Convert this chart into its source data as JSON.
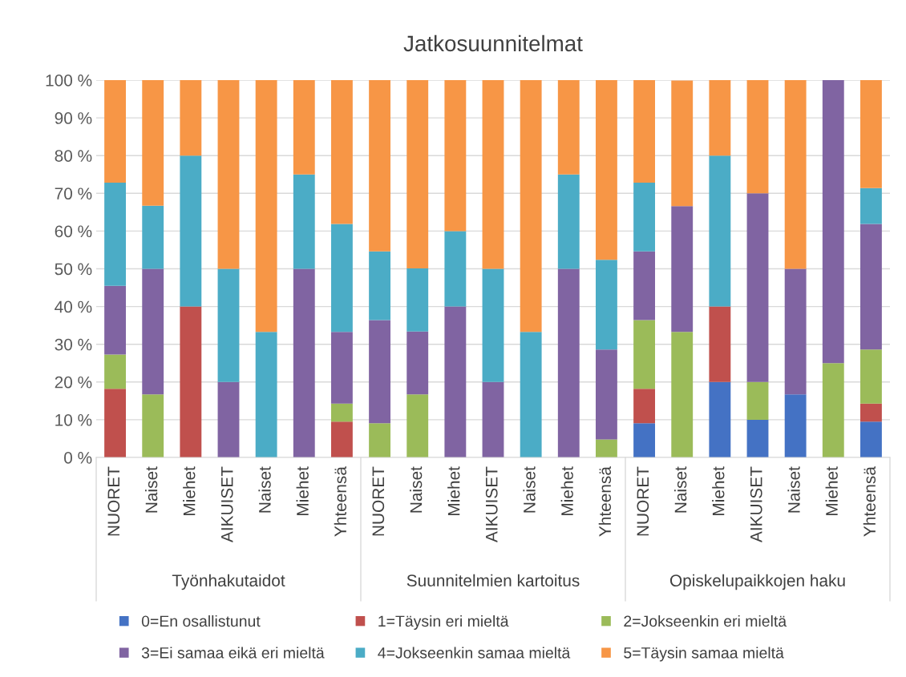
{
  "chart_data": {
    "type": "bar",
    "title": "Jatkosuunnitelmat",
    "stacked": true,
    "categories": [
      "NUORET",
      "Naiset",
      "Miehet",
      "AIKUISET",
      "Naiset",
      "Miehet",
      "Yhteensä",
      "NUORET",
      "Naiset",
      "Miehet",
      "AIKUISET",
      "Naiset",
      "Miehet",
      "Yhteensä",
      "NUORET",
      "Naiset",
      "Miehet",
      "AIKUISET",
      "Naiset",
      "Miehet",
      "Yhteensä"
    ],
    "annotations": [
      "Työnhakutaidot",
      "Suunnitelmien kartoitus",
      "Opiskelupaikkojen haku"
    ],
    "series": [
      {
        "name": "0=En osallistunut",
        "color": "#4472c4",
        "values": [
          0,
          0,
          0,
          0,
          0,
          0,
          0,
          0,
          0,
          0,
          0,
          0,
          0,
          0,
          9.1,
          0,
          20,
          10,
          16.7,
          0,
          9.5
        ]
      },
      {
        "name": "1=Täysin eri mieltä",
        "color": "#c0504d",
        "values": [
          18.2,
          0,
          40,
          0,
          0,
          0,
          9.5,
          0,
          0,
          0,
          0,
          0,
          0,
          0,
          9.1,
          0,
          20,
          0,
          0,
          0,
          4.8
        ]
      },
      {
        "name": "2=Jokseenkin eri mieltä",
        "color": "#9bbb59",
        "values": [
          9.1,
          16.7,
          0,
          0,
          0,
          0,
          4.8,
          9.1,
          16.7,
          0,
          0,
          0,
          0,
          4.8,
          18.2,
          33.3,
          0,
          10,
          0,
          25,
          14.3
        ]
      },
      {
        "name": "3=Ei samaa eikä eri mieltä",
        "color": "#8064a2",
        "values": [
          18.2,
          33.3,
          0,
          20,
          0,
          50,
          19.0,
          27.3,
          16.7,
          40,
          20,
          0,
          50,
          23.8,
          18.2,
          33.3,
          0,
          50,
          33.3,
          75,
          33.3
        ]
      },
      {
        "name": "4=Jokseenkin samaa mieltä",
        "color": "#4bacc6",
        "values": [
          27.3,
          16.7,
          40,
          30,
          33.3,
          25,
          28.6,
          18.2,
          16.7,
          20,
          30,
          33.3,
          25,
          23.8,
          18.2,
          0,
          40,
          0,
          0,
          0,
          9.5
        ]
      },
      {
        "name": "5=Täysin samaa mieltä",
        "color": "#f79646",
        "values": [
          27.3,
          33.3,
          20,
          50,
          66.7,
          25,
          38.1,
          45.5,
          50,
          40,
          50,
          66.7,
          25,
          47.6,
          27.3,
          33.3,
          20,
          30,
          50,
          0,
          28.6
        ]
      }
    ],
    "ylim": [
      0,
      100
    ],
    "yticks": [
      {
        "value": 0,
        "label": "0 %"
      },
      {
        "value": 10,
        "label": "10 %"
      },
      {
        "value": 20,
        "label": "20 %"
      },
      {
        "value": 30,
        "label": "30 %"
      },
      {
        "value": 40,
        "label": "40 %"
      },
      {
        "value": 50,
        "label": "50 %"
      },
      {
        "value": 60,
        "label": "60 %"
      },
      {
        "value": 70,
        "label": "70 %"
      },
      {
        "value": 80,
        "label": "80 %"
      },
      {
        "value": 90,
        "label": "90 %"
      },
      {
        "value": 100,
        "label": "100 %"
      }
    ],
    "grid": "y",
    "legend": "bottom"
  }
}
